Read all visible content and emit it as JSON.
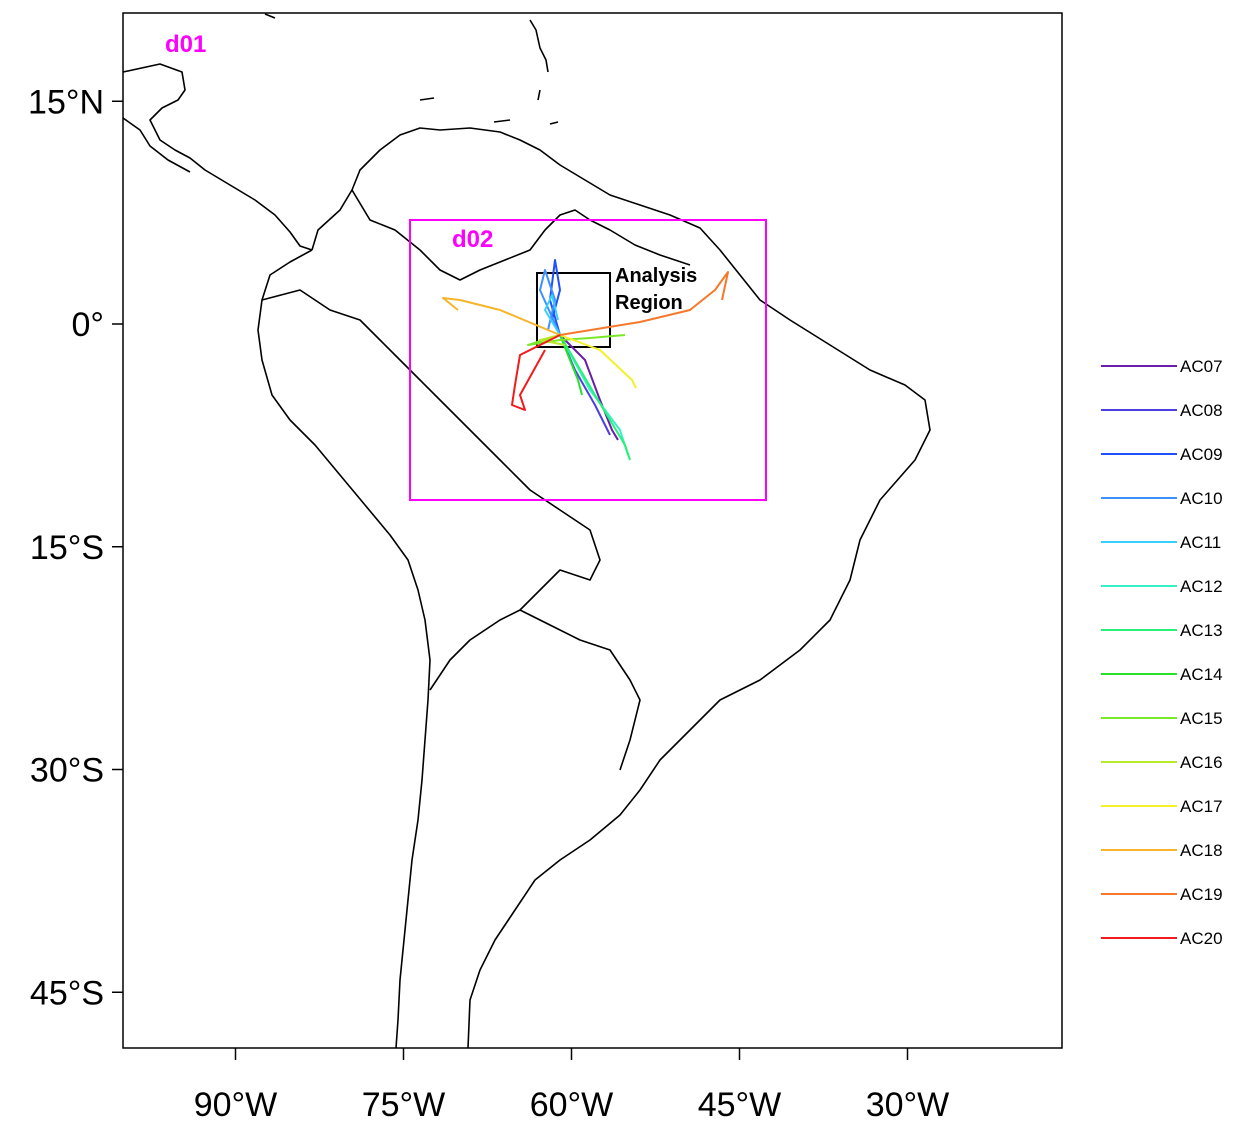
{
  "map": {
    "domain_labels": {
      "d01": "d01",
      "d02": "d02"
    },
    "analysis_region_label": [
      "Analysis",
      "Region"
    ],
    "lat_ticks": [
      {
        "label": "15°N",
        "lat": 15
      },
      {
        "label": "0°",
        "lat": 0
      },
      {
        "label": "15°S",
        "lat": -15
      },
      {
        "label": "30°S",
        "lat": -30
      },
      {
        "label": "45°S",
        "lat": -45
      }
    ],
    "lon_ticks": [
      {
        "label": "90°W",
        "lon": -90
      },
      {
        "label": "75°W",
        "lon": -75
      },
      {
        "label": "60°W",
        "lon": -60
      },
      {
        "label": "45°W",
        "lon": -45
      },
      {
        "label": "30°W",
        "lon": -30
      }
    ],
    "colors": {
      "domain_box": "#ff00ff",
      "coastline": "#000000",
      "analysis_box": "#000000"
    }
  },
  "legend": {
    "items": [
      {
        "label": "AC07",
        "color": "#6a1fa8"
      },
      {
        "label": "AC08",
        "color": "#4b3fe0"
      },
      {
        "label": "AC09",
        "color": "#1f4fff"
      },
      {
        "label": "AC10",
        "color": "#3c90ff"
      },
      {
        "label": "AC11",
        "color": "#39d0ff"
      },
      {
        "label": "AC12",
        "color": "#38f0c8"
      },
      {
        "label": "AC13",
        "color": "#2af07a"
      },
      {
        "label": "AC14",
        "color": "#2ae02a"
      },
      {
        "label": "AC15",
        "color": "#7ae82a"
      },
      {
        "label": "AC16",
        "color": "#b8ea2a"
      },
      {
        "label": "AC17",
        "color": "#f4f02a"
      },
      {
        "label": "AC18",
        "color": "#f6b52a"
      },
      {
        "label": "AC19",
        "color": "#f6782a"
      },
      {
        "label": "AC20",
        "color": "#f21a1a"
      }
    ]
  }
}
